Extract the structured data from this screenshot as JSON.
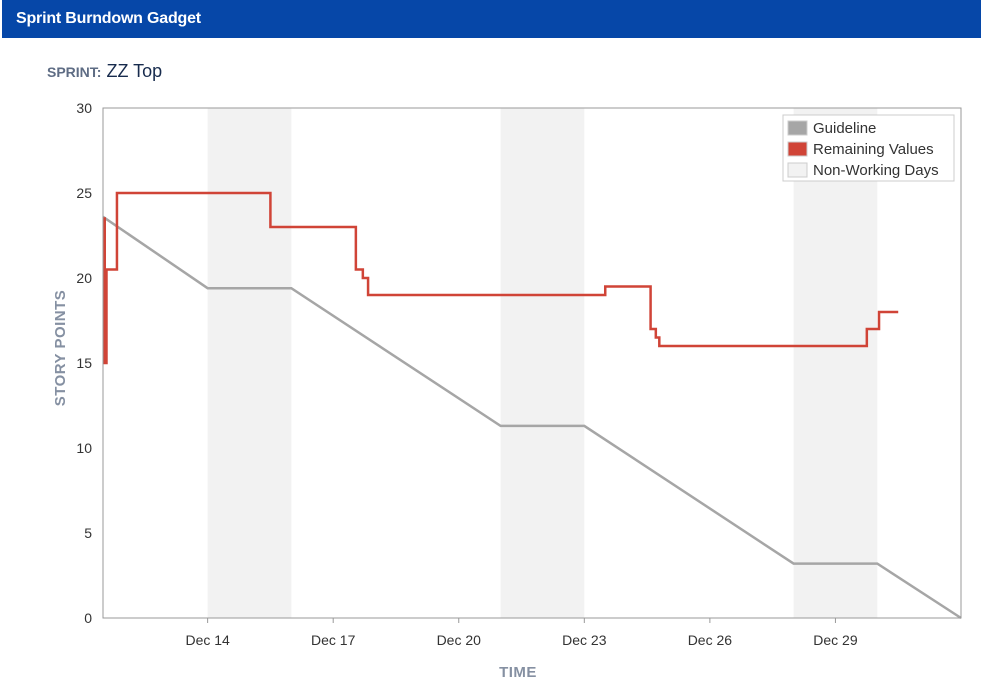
{
  "gadget": {
    "title": "Sprint Burndown Gadget"
  },
  "sprint": {
    "label": "SPRINT:",
    "name": "ZZ Top"
  },
  "colors": {
    "header_bg": "#0647a8",
    "guideline": "#a6a6a6",
    "remaining": "#d04437",
    "non_working": "#f2f2f2",
    "plot_border": "#999999"
  },
  "chart_data": {
    "type": "line",
    "xlabel": "TIME",
    "ylabel": "STORY POINTS",
    "ylim": [
      0,
      30
    ],
    "yticks": [
      0,
      5,
      10,
      15,
      20,
      25,
      30
    ],
    "xlim": [
      "Dec 11 12:00",
      "Jan 1 00:00"
    ],
    "xticks": [
      {
        "label": "Dec 14",
        "date": "Dec 14"
      },
      {
        "label": "Dec 17",
        "date": "Dec 17"
      },
      {
        "label": "Dec 20",
        "date": "Dec 20"
      },
      {
        "label": "Dec 23",
        "date": "Dec 23"
      },
      {
        "label": "Dec 26",
        "date": "Dec 26"
      },
      {
        "label": "Dec 29",
        "date": "Dec 29"
      }
    ],
    "legend": {
      "position": "top-right",
      "entries": [
        {
          "key": "guideline",
          "label": "Guideline"
        },
        {
          "key": "remaining",
          "label": "Remaining Values"
        },
        {
          "key": "non_working",
          "label": "Non-Working Days"
        }
      ]
    },
    "non_working_days": [
      {
        "start": "Dec 14",
        "end": "Dec 16"
      },
      {
        "start": "Dec 21",
        "end": "Dec 23"
      },
      {
        "start": "Dec 28",
        "end": "Dec 30"
      }
    ],
    "series": [
      {
        "key": "guideline",
        "name": "Guideline",
        "points": [
          {
            "x": "Dec 11 12:00",
            "y": 23.6
          },
          {
            "x": "Dec 14",
            "y": 19.4
          },
          {
            "x": "Dec 16",
            "y": 19.4
          },
          {
            "x": "Dec 21",
            "y": 11.3
          },
          {
            "x": "Dec 23",
            "y": 11.3
          },
          {
            "x": "Dec 28",
            "y": 3.2
          },
          {
            "x": "Dec 30",
            "y": 3.2
          },
          {
            "x": "Jan 1 00:00",
            "y": 0
          }
        ]
      },
      {
        "key": "remaining",
        "name": "Remaining Values",
        "step": true,
        "points": [
          {
            "x": "Dec 11 12:00",
            "y": 23.5
          },
          {
            "x": "Dec 11 13:00",
            "y": 15
          },
          {
            "x": "Dec 11 14:00",
            "y": 20.5
          },
          {
            "x": "Dec 11 20:00",
            "y": 25
          },
          {
            "x": "Dec 15 12:00",
            "y": 23
          },
          {
            "x": "Dec 17 13:00",
            "y": 20.5
          },
          {
            "x": "Dec 17 17:00",
            "y": 20
          },
          {
            "x": "Dec 17 20:00",
            "y": 19
          },
          {
            "x": "Dec 23 12:00",
            "y": 19.5
          },
          {
            "x": "Dec 24 14:00",
            "y": 17
          },
          {
            "x": "Dec 24 17:00",
            "y": 16.5
          },
          {
            "x": "Dec 24 19:00",
            "y": 16
          },
          {
            "x": "Dec 29 18:00",
            "y": 17
          },
          {
            "x": "Dec 30 01:00",
            "y": 18
          },
          {
            "x": "Dec 30 12:00",
            "y": 18
          }
        ]
      }
    ]
  }
}
